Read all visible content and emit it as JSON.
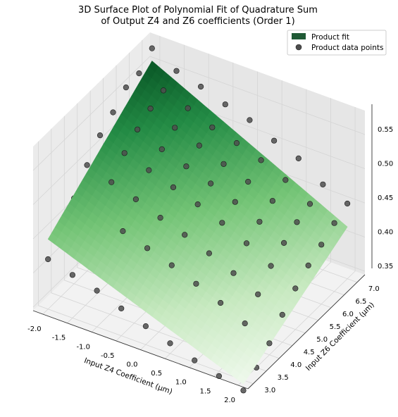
{
  "chart_data": {
    "type": "surface3d",
    "title_lines": [
      "3D Surface Plot of Polynomial Fit of Quadrature Sum",
      "of Output Z4 and Z6 coefficients (Order 1)"
    ],
    "xlabel": "Input Z4 Coefficient (μm)",
    "ylabel": "Input Z6 Coefficient (μm)",
    "zlabel": "",
    "xlim": [
      -2.2,
      2.2
    ],
    "ylim": [
      2.8,
      7.3
    ],
    "zlim": [
      0.345,
      0.585
    ],
    "x_ticks": [
      "-2.0",
      "-1.5",
      "-1.0",
      "-0.5",
      "0.0",
      "0.5",
      "1.0",
      "1.5",
      "2.0"
    ],
    "y_ticks": [
      "3.0",
      "3.5",
      "4.0",
      "4.5",
      "5.0",
      "5.5",
      "6.0",
      "6.5",
      "7.0"
    ],
    "z_ticks": [
      "0.35",
      "0.40",
      "0.45",
      "0.50",
      "0.55"
    ],
    "grid": true,
    "legend_position": "top-right",
    "surface": {
      "name": "Product fit",
      "color": "#1f5a35",
      "colormap": [
        "#f7fcf5",
        "#c7e9c0",
        "#74c476",
        "#238b45",
        "#00441b"
      ],
      "corners": {
        "x_min_y_min": 0.447,
        "x_max_y_min": 0.33,
        "x_min_y_max": 0.575,
        "x_max_y_max": 0.42
      }
    },
    "scatter": {
      "name": "Product data points",
      "color": "#4d4d4d",
      "points": [
        [
          -2.0,
          7.0,
          0.578
        ],
        [
          -1.5,
          7.0,
          0.558
        ],
        [
          -1.0,
          7.0,
          0.548
        ],
        [
          -0.5,
          7.0,
          0.535
        ],
        [
          0.0,
          7.0,
          0.525
        ],
        [
          0.5,
          7.0,
          0.508
        ],
        [
          1.0,
          7.0,
          0.495
        ],
        [
          1.5,
          7.0,
          0.47
        ],
        [
          2.0,
          7.0,
          0.455
        ],
        [
          -2.0,
          6.5,
          0.56
        ],
        [
          -1.5,
          6.5,
          0.548
        ],
        [
          -1.0,
          6.5,
          0.535
        ],
        [
          -0.5,
          6.5,
          0.52
        ],
        [
          0.0,
          6.5,
          0.51
        ],
        [
          0.5,
          6.5,
          0.498
        ],
        [
          1.0,
          6.5,
          0.482
        ],
        [
          1.5,
          6.5,
          0.46
        ],
        [
          2.0,
          6.5,
          0.445
        ],
        [
          -2.0,
          6.0,
          0.558
        ],
        [
          -1.5,
          6.0,
          0.54
        ],
        [
          -1.0,
          6.0,
          0.525
        ],
        [
          -0.5,
          6.0,
          0.512
        ],
        [
          0.0,
          6.0,
          0.498
        ],
        [
          0.5,
          6.0,
          0.485
        ],
        [
          1.0,
          6.0,
          0.47
        ],
        [
          1.5,
          6.0,
          0.452
        ],
        [
          2.0,
          6.0,
          0.432
        ],
        [
          -2.0,
          5.5,
          0.54
        ],
        [
          -1.5,
          5.5,
          0.528
        ],
        [
          -1.0,
          5.5,
          0.512
        ],
        [
          -0.5,
          5.5,
          0.5
        ],
        [
          0.0,
          5.5,
          0.488
        ],
        [
          0.5,
          5.5,
          0.474
        ],
        [
          1.0,
          5.5,
          0.458
        ],
        [
          1.5,
          5.5,
          0.44
        ],
        [
          2.0,
          5.5,
          0.42
        ],
        [
          -2.0,
          5.0,
          0.525
        ],
        [
          -1.5,
          5.0,
          0.512
        ],
        [
          -1.0,
          5.0,
          0.5
        ],
        [
          -0.5,
          5.0,
          0.488
        ],
        [
          0.0,
          5.0,
          0.476
        ],
        [
          0.5,
          5.0,
          0.462
        ],
        [
          1.0,
          5.0,
          0.445
        ],
        [
          1.5,
          5.0,
          0.425
        ],
        [
          2.0,
          5.0,
          0.405
        ],
        [
          -2.0,
          4.5,
          0.5
        ],
        [
          -1.5,
          4.5,
          0.488
        ],
        [
          -1.0,
          4.5,
          0.476
        ],
        [
          -0.5,
          4.5,
          0.462
        ],
        [
          0.0,
          4.5,
          0.45
        ],
        [
          0.5,
          4.5,
          0.436
        ],
        [
          1.0,
          4.5,
          0.42
        ],
        [
          1.5,
          4.5,
          0.402
        ],
        [
          2.0,
          4.5,
          0.385
        ],
        [
          -2.0,
          4.0,
          0.47
        ],
        [
          -1.5,
          4.0,
          0.46
        ],
        [
          -1.0,
          4.0,
          0.448
        ],
        [
          -0.5,
          4.0,
          0.436
        ],
        [
          0.0,
          4.0,
          0.424
        ],
        [
          0.5,
          4.0,
          0.41
        ],
        [
          1.0,
          4.0,
          0.395
        ],
        [
          1.5,
          4.0,
          0.378
        ],
        [
          2.0,
          4.0,
          0.362
        ],
        [
          -2.0,
          3.5,
          0.452
        ],
        [
          -1.5,
          3.5,
          0.44
        ],
        [
          -1.0,
          3.5,
          0.428
        ],
        [
          -0.5,
          3.5,
          0.415
        ],
        [
          0.0,
          3.5,
          0.402
        ],
        [
          0.5,
          3.5,
          0.39
        ],
        [
          1.0,
          3.5,
          0.375
        ],
        [
          1.5,
          3.5,
          0.358
        ],
        [
          2.0,
          3.5,
          0.345
        ],
        [
          -2.0,
          3.0,
          0.418
        ],
        [
          -1.5,
          3.0,
          0.408
        ],
        [
          -1.0,
          3.0,
          0.398
        ],
        [
          -0.5,
          3.0,
          0.385
        ],
        [
          0.0,
          3.0,
          0.372
        ],
        [
          0.5,
          3.0,
          0.36
        ],
        [
          1.0,
          3.0,
          0.348
        ],
        [
          1.5,
          3.0,
          0.338
        ],
        [
          2.0,
          3.0,
          0.33
        ]
      ]
    }
  }
}
